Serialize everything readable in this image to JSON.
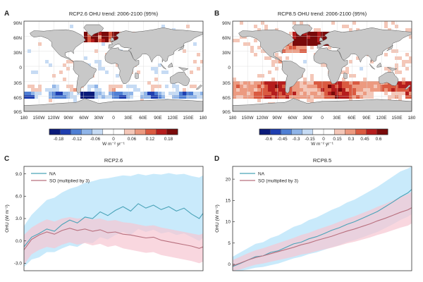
{
  "colors": {
    "na_line": "#4aa3b8",
    "na_band": "#bfe6fa",
    "so_line": "#b8707e",
    "so_band": "#f6c6d2",
    "land": "#c8c8c8",
    "grid": "#d8d8d8",
    "diverging": [
      "#0a1a7a",
      "#1f3fb0",
      "#4f7fd4",
      "#8fb4e8",
      "#c6dbf4",
      "#ffffff",
      "#ffffff",
      "#f4c7b8",
      "#ec9a80",
      "#da5a40",
      "#b51d1d",
      "#7a0a0a"
    ]
  },
  "chart_data": [
    {
      "type": "heatmap",
      "panel_letter": "A",
      "title": "RCP2.6 OHU trend: 2006-2100 (95%)",
      "y_ticks": [
        "90N",
        "60N",
        "30N",
        "0",
        "30S",
        "60S",
        "90S"
      ],
      "x_ticks": [
        "180",
        "150W",
        "120W",
        "90W",
        "60W",
        "30W",
        "0",
        "30E",
        "60E",
        "90E",
        "120E",
        "150E",
        "180"
      ],
      "colorbar_ticks": [
        "-0.18",
        "-0.12",
        "-0.06",
        "0",
        "0.06",
        "0.12",
        "0.18"
      ],
      "colorbar_range": [
        -0.21,
        0.21
      ],
      "colorbar_units": "W m⁻² yr⁻¹"
    },
    {
      "type": "heatmap",
      "panel_letter": "B",
      "title": "RCP8.5 OHU trend: 2006-2100 (95%)",
      "y_ticks": [
        "90N",
        "60N",
        "30N",
        "0",
        "30S",
        "60S",
        "90S"
      ],
      "x_ticks": [
        "180",
        "150W",
        "120W",
        "90W",
        "60W",
        "30W",
        "0",
        "30E",
        "60E",
        "90E",
        "120E",
        "150E",
        "180"
      ],
      "colorbar_ticks": [
        "-0.6",
        "-0.45",
        "-0.3",
        "-0.15",
        "0",
        "0.15",
        "0.3",
        "0.45",
        "0.6"
      ],
      "colorbar_range": [
        -0.7,
        0.7
      ],
      "colorbar_units": "W m⁻² yr⁻¹"
    },
    {
      "type": "line",
      "panel_letter": "C",
      "title": "RCP2.6",
      "ylabel": "OHU (W m⁻²)",
      "ylim": [
        -4,
        10
      ],
      "xlim": [
        2006,
        2100
      ],
      "y_ticks": [
        -3,
        0,
        3,
        6,
        9
      ],
      "y_tick_labels": [
        "-3.0",
        "0.0",
        "3.0",
        "6.0",
        "9.0"
      ],
      "legend_position": "top-left",
      "series": [
        {
          "name": "NA",
          "x": [
            2006,
            2010,
            2014,
            2018,
            2022,
            2026,
            2030,
            2034,
            2038,
            2042,
            2046,
            2050,
            2054,
            2058,
            2062,
            2066,
            2070,
            2074,
            2078,
            2082,
            2086,
            2090,
            2094,
            2098,
            2100
          ],
          "y": [
            -0.8,
            0.5,
            1.0,
            1.6,
            1.3,
            2.2,
            2.8,
            2.4,
            3.2,
            3.0,
            3.9,
            3.4,
            4.1,
            4.6,
            4.0,
            5.0,
            4.4,
            4.8,
            4.2,
            4.6,
            4.0,
            4.4,
            3.6,
            3.0,
            3.7
          ],
          "upper": [
            2.0,
            3.5,
            4.5,
            5.5,
            5.8,
            6.5,
            7.0,
            7.3,
            7.8,
            8.0,
            8.3,
            8.4,
            8.6,
            8.8,
            8.7,
            9.0,
            8.8,
            9.0,
            8.9,
            9.1,
            8.9,
            9.0,
            8.7,
            8.5,
            8.8
          ],
          "lower": [
            -3.5,
            -2.5,
            -2.2,
            -1.5,
            -1.5,
            -1.0,
            -0.6,
            -0.8,
            -0.2,
            -0.3,
            0.5,
            0.2,
            0.8,
            1.2,
            0.8,
            1.6,
            1.2,
            1.5,
            1.0,
            1.2,
            0.8,
            1.0,
            0.5,
            0.0,
            0.4
          ]
        },
        {
          "name": "SO (multiplied by 3)",
          "x": [
            2006,
            2010,
            2014,
            2018,
            2022,
            2026,
            2030,
            2034,
            2038,
            2042,
            2046,
            2050,
            2054,
            2058,
            2062,
            2066,
            2070,
            2074,
            2078,
            2082,
            2086,
            2090,
            2094,
            2098,
            2100
          ],
          "y": [
            -1.2,
            0.2,
            0.8,
            1.2,
            0.9,
            1.4,
            1.7,
            1.4,
            1.6,
            1.3,
            1.5,
            1.1,
            1.2,
            0.9,
            0.8,
            0.6,
            0.4,
            0.5,
            0.1,
            -0.1,
            -0.3,
            -0.5,
            -0.7,
            -1.0,
            -0.8
          ],
          "upper": [
            0.8,
            1.8,
            2.4,
            2.9,
            2.6,
            3.0,
            3.2,
            3.0,
            3.1,
            2.9,
            3.0,
            2.7,
            2.8,
            2.5,
            2.4,
            2.2,
            2.0,
            2.1,
            1.8,
            1.6,
            1.4,
            1.2,
            1.0,
            0.8,
            1.0
          ],
          "lower": [
            -3.2,
            -1.8,
            -1.2,
            -0.8,
            -1.0,
            -0.5,
            -0.2,
            -0.5,
            -0.3,
            -0.6,
            -0.4,
            -0.8,
            -0.6,
            -1.0,
            -1.2,
            -1.4,
            -1.6,
            -1.5,
            -1.9,
            -2.1,
            -2.3,
            -2.5,
            -2.7,
            -3.0,
            -2.8
          ]
        }
      ]
    },
    {
      "type": "line",
      "panel_letter": "D",
      "title": "RCP8.5",
      "ylabel": "OHU (W m⁻²)",
      "ylim": [
        -1.5,
        23
      ],
      "xlim": [
        2006,
        2100
      ],
      "y_ticks": [
        0,
        5,
        10,
        15,
        20
      ],
      "y_tick_labels": [
        "0",
        "5",
        "10",
        "15",
        "20"
      ],
      "legend_position": "top-left",
      "series": [
        {
          "name": "NA",
          "x": [
            2006,
            2010,
            2014,
            2018,
            2022,
            2026,
            2030,
            2034,
            2038,
            2042,
            2046,
            2050,
            2054,
            2058,
            2062,
            2066,
            2070,
            2074,
            2078,
            2082,
            2086,
            2090,
            2094,
            2098,
            2100
          ],
          "y": [
            -0.5,
            0.2,
            1.0,
            1.8,
            2.0,
            2.8,
            3.2,
            4.0,
            4.8,
            5.2,
            6.0,
            6.5,
            7.2,
            8.0,
            8.6,
            9.4,
            10.0,
            10.8,
            11.6,
            12.4,
            13.5,
            14.6,
            15.8,
            16.8,
            17.6
          ],
          "upper": [
            1.8,
            2.8,
            3.8,
            4.8,
            5.2,
            6.2,
            6.8,
            7.8,
            8.8,
            9.4,
            10.4,
            11.0,
            11.9,
            12.8,
            13.5,
            14.5,
            15.2,
            16.2,
            17.2,
            18.2,
            19.4,
            20.6,
            21.8,
            22.5,
            23.0
          ],
          "lower": [
            -1.5,
            -1.5,
            -1.2,
            -0.8,
            -0.6,
            -0.2,
            0.2,
            0.8,
            1.4,
            1.8,
            2.4,
            2.8,
            3.4,
            4.0,
            4.5,
            5.2,
            5.7,
            6.3,
            7.0,
            7.6,
            8.5,
            9.4,
            10.4,
            11.2,
            11.8
          ]
        },
        {
          "name": "SO (multiplied by 3)",
          "x": [
            2006,
            2010,
            2014,
            2018,
            2022,
            2026,
            2030,
            2034,
            2038,
            2042,
            2046,
            2050,
            2054,
            2058,
            2062,
            2066,
            2070,
            2074,
            2078,
            2082,
            2086,
            2090,
            2094,
            2098,
            2100
          ],
          "y": [
            -0.3,
            0.3,
            1.0,
            1.6,
            2.0,
            2.5,
            3.0,
            3.5,
            4.0,
            4.6,
            5.0,
            5.6,
            6.1,
            6.6,
            7.2,
            7.8,
            8.3,
            8.9,
            9.5,
            10.2,
            10.8,
            11.5,
            12.2,
            12.8,
            13.3
          ],
          "upper": [
            1.0,
            1.8,
            2.6,
            3.3,
            3.8,
            4.4,
            5.0,
            5.6,
            6.2,
            6.9,
            7.4,
            8.1,
            8.7,
            9.3,
            10.0,
            10.7,
            11.3,
            12.0,
            12.7,
            13.5,
            14.2,
            15.0,
            15.8,
            16.5,
            17.0
          ],
          "lower": [
            -1.5,
            -1.2,
            -0.6,
            -0.1,
            0.2,
            0.6,
            1.0,
            1.4,
            1.8,
            2.3,
            2.6,
            3.1,
            3.5,
            3.9,
            4.4,
            4.9,
            5.3,
            5.8,
            6.3,
            6.9,
            7.4,
            8.0,
            8.6,
            9.1,
            9.6
          ]
        }
      ]
    }
  ]
}
